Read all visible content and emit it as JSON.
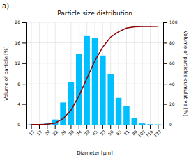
{
  "chart_data": {
    "type": "bar",
    "title": "Particle size distribution",
    "xlabel": "Diameter [μm]",
    "ylabel": "Volume of particle [%]",
    "y2label": "Volume of particles-cumulative [%]",
    "annotations": [
      "a)"
    ],
    "categories": [
      "15",
      "17",
      "20",
      "22",
      "26",
      "30",
      "34",
      "38",
      "45",
      "53",
      "56",
      "65",
      "71",
      "80",
      "102",
      "116",
      "133"
    ],
    "series": [
      {
        "type": "bar",
        "color": "#00BFFF",
        "values": [
          0.1,
          0.1,
          0.35,
          1.0,
          4.3,
          8.3,
          13.8,
          17.3,
          17.0,
          13.5,
          9.8,
          5.2,
          3.6,
          1.3,
          0.25,
          0.1,
          0.05
        ]
      },
      {
        "type": "line",
        "axis": "y2",
        "color": "#8B0000",
        "values": [
          0.1,
          0.2,
          0.55,
          1.55,
          5.85,
          14.15,
          27.95,
          45.25,
          62.25,
          75.75,
          85.55,
          90.75,
          94.35,
          95.65,
          95.9,
          96.0,
          96.05
        ]
      }
    ],
    "ylim": [
      0,
      20
    ],
    "yticks": [
      0,
      4,
      8,
      12,
      16,
      20
    ],
    "y2lim": [
      0,
      100
    ],
    "y2ticks": [
      0,
      20,
      40,
      60,
      80,
      100
    ],
    "grid": true
  }
}
